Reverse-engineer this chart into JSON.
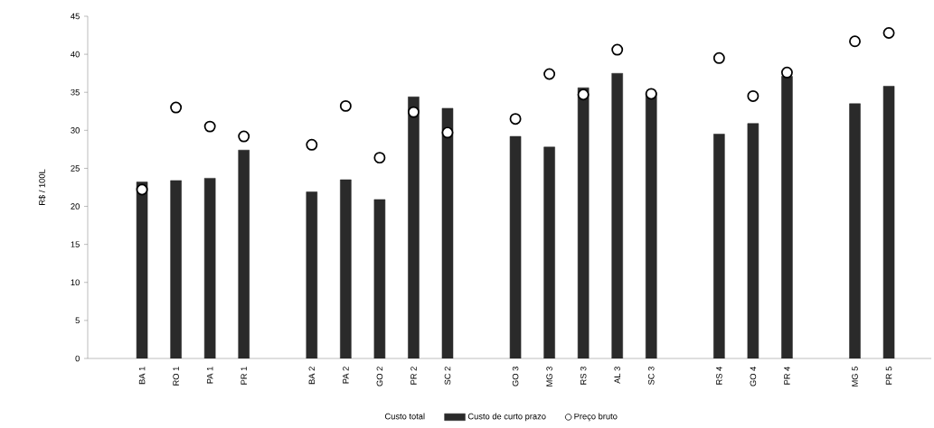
{
  "chart_data": {
    "type": "bar",
    "ylabel": "R$ / 100L",
    "categories": [
      "BA 1",
      "RO 1",
      "PA 1",
      "PR 1",
      null,
      "BA 2",
      "PA 2",
      "GO 2",
      "PR 2",
      "SC 2",
      null,
      "GO 3",
      "MG 3",
      "RS 3",
      "AL 3",
      "SC 3",
      null,
      "RS 4",
      "GO 4",
      "PR 4",
      null,
      "MG 5",
      "PR 5"
    ],
    "series": [
      {
        "name": "Custo de curto prazo",
        "color": "#2a2a2a",
        "values": [
          23.2,
          23.4,
          23.7,
          27.4,
          null,
          21.9,
          23.5,
          20.9,
          34.4,
          32.9,
          null,
          29.2,
          27.8,
          35.6,
          37.5,
          35.0,
          null,
          29.5,
          30.9,
          37.1,
          null,
          33.5,
          35.8
        ]
      },
      {
        "name": "Preço bruto",
        "type": "scatter",
        "color": "#ffffff",
        "values": [
          22.2,
          33.0,
          30.5,
          29.2,
          null,
          28.1,
          33.2,
          26.4,
          32.4,
          29.7,
          null,
          31.5,
          37.4,
          34.7,
          40.6,
          34.8,
          null,
          39.5,
          34.5,
          37.6,
          null,
          41.7,
          42.8
        ]
      }
    ],
    "annotations": [
      "Custo total"
    ],
    "ylim": [
      0,
      45
    ],
    "yticks": [
      0,
      5,
      10,
      15,
      20,
      25,
      30,
      35,
      40,
      45
    ],
    "legend": "bottom"
  }
}
